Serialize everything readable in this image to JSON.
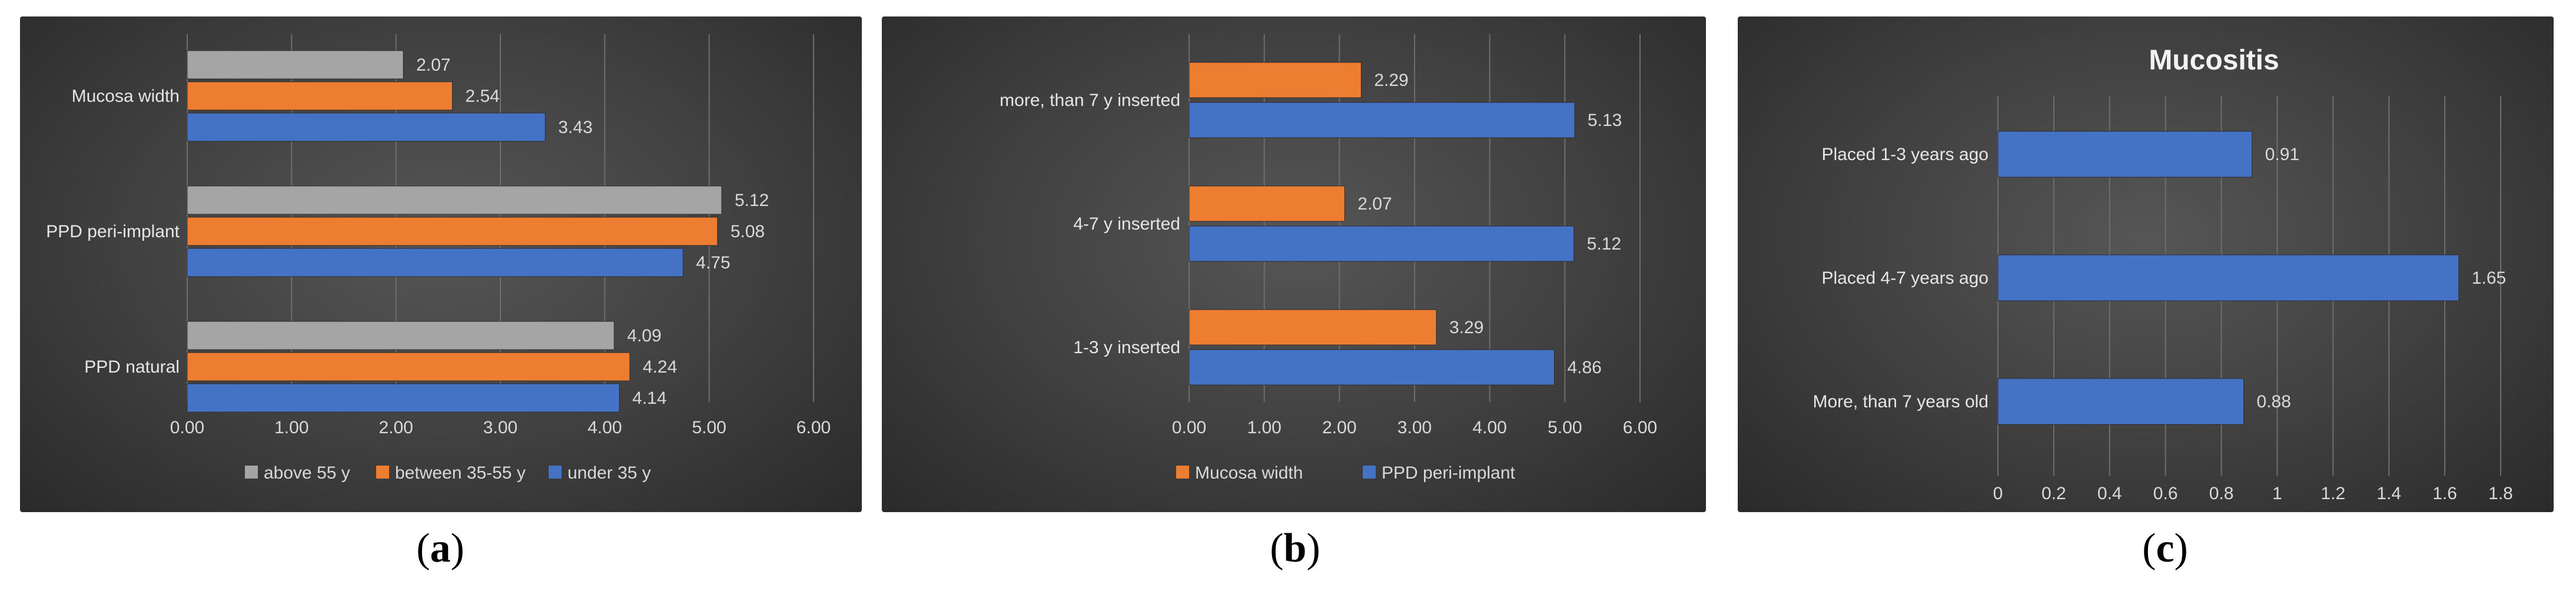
{
  "chart_data": [
    {
      "type": "bar",
      "orientation": "horizontal",
      "title": "",
      "categories": [
        "Mucosa width",
        "PPD peri-implant",
        "PPD natural"
      ],
      "series": [
        {
          "name": "above 55 y",
          "color": "#a5a5a5",
          "values": [
            2.07,
            5.12,
            4.09
          ]
        },
        {
          "name": "between 35-55 y",
          "color": "#ed7d31",
          "values": [
            2.54,
            5.08,
            4.24
          ]
        },
        {
          "name": "under 35 y",
          "color": "#4472c4",
          "values": [
            3.43,
            4.75,
            4.14
          ]
        }
      ],
      "xticks": [
        "0.00",
        "1.00",
        "2.00",
        "3.00",
        "4.00",
        "5.00",
        "6.00"
      ],
      "xlim": [
        0,
        6
      ],
      "legend_position": "bottom",
      "grid": true
    },
    {
      "type": "bar",
      "orientation": "horizontal",
      "title": "",
      "categories": [
        "more, than 7 y inserted",
        "4-7 y inserted",
        "1-3 y inserted"
      ],
      "series": [
        {
          "name": "Mucosa width",
          "color": "#ed7d31",
          "values": [
            2.29,
            2.07,
            3.29
          ]
        },
        {
          "name": "PPD peri-implant",
          "color": "#4472c4",
          "values": [
            5.13,
            5.12,
            4.86
          ]
        }
      ],
      "xticks": [
        "0.00",
        "1.00",
        "2.00",
        "3.00",
        "4.00",
        "5.00",
        "6.00"
      ],
      "xlim": [
        0,
        6
      ],
      "legend_position": "bottom",
      "grid": true
    },
    {
      "type": "bar",
      "orientation": "horizontal",
      "title": "Mucositis",
      "categories": [
        "Placed 1-3 years ago",
        "Placed 4-7 years ago",
        "More, than 7 years old"
      ],
      "series": [
        {
          "color": "#4472c4",
          "values": [
            0.91,
            1.65,
            0.88
          ]
        }
      ],
      "xticks": [
        "0",
        "0.2",
        "0.4",
        "0.6",
        "0.8",
        "1",
        "1.2",
        "1.4",
        "1.6",
        "1.8"
      ],
      "xlim": [
        0,
        1.8
      ],
      "legend_position": "none",
      "grid": true
    }
  ],
  "captions": [
    {
      "open": "(",
      "letter": "a",
      "close": ")"
    },
    {
      "open": "(",
      "letter": "b",
      "close": ")"
    },
    {
      "open": "(",
      "letter": "c",
      "close": ")"
    }
  ]
}
